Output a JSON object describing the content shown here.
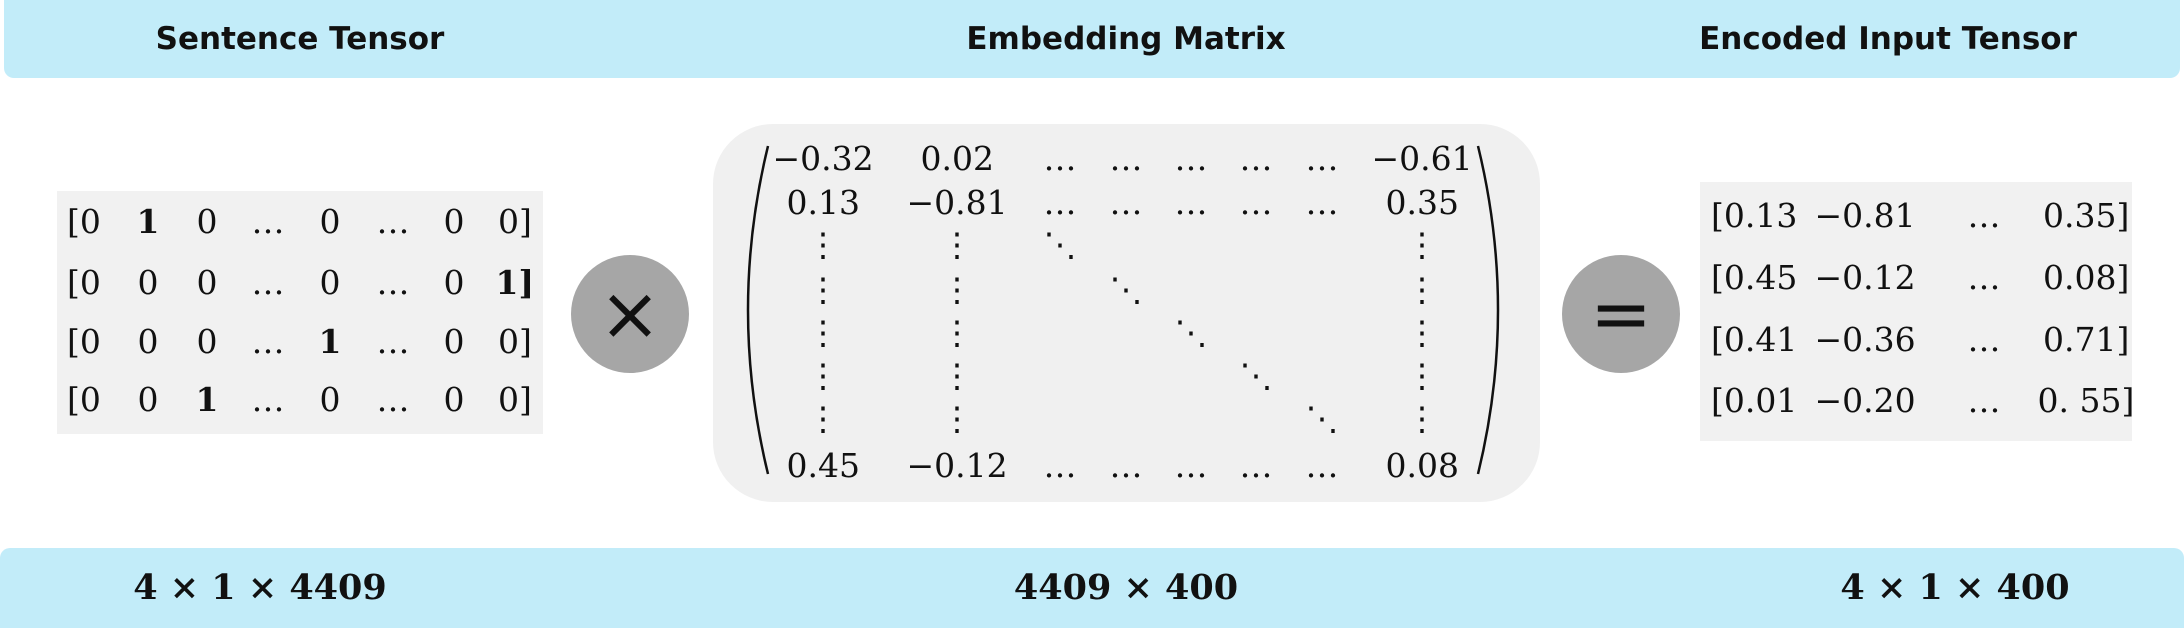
{
  "headers": {
    "left": "Sentence Tensor",
    "middle": "Embedding Matrix",
    "right": "Encoded Input Tensor"
  },
  "dimensions": {
    "left": "4 × 1 × 4409",
    "middle": "4409 × 400",
    "right": "4 × 1 × 400"
  },
  "operators": {
    "multiply": "×",
    "equals": "="
  },
  "sentence_tensor": {
    "rows": [
      [
        "[0",
        "1",
        "0",
        "…",
        "0",
        "…",
        "0",
        "0]"
      ],
      [
        "[0",
        "0",
        "0",
        "…",
        "0",
        "…",
        "0",
        "1]"
      ],
      [
        "[0",
        "0",
        "0",
        "…",
        "1",
        "…",
        "0",
        "0]"
      ],
      [
        "[0",
        "0",
        "1",
        "…",
        "0",
        "…",
        "0",
        "0]"
      ]
    ],
    "hot_cells": [
      [
        0,
        1
      ],
      [
        1,
        7
      ],
      [
        2,
        4
      ],
      [
        3,
        2
      ]
    ]
  },
  "embedding_matrix": {
    "first_row": [
      "−0.32",
      "0.02",
      "…",
      "…",
      "…",
      "…",
      "…",
      "−0.61"
    ],
    "second_row": [
      "0.13",
      "−0.81",
      "…",
      "…",
      "…",
      "…",
      "…",
      "0.35"
    ],
    "last_row": [
      "0.45",
      "−0.12",
      "…",
      "…",
      "…",
      "…",
      "…",
      "0.08"
    ],
    "vdots": "⋮",
    "ddots": "⋱"
  },
  "encoded_tensor": {
    "rows": [
      [
        "[0.13",
        "−0.81",
        "…",
        "0.35]"
      ],
      [
        "[0.45",
        "−0.12",
        "…",
        "0.08]"
      ],
      [
        "[0.41",
        "−0.36",
        "…",
        "0.71]"
      ],
      [
        "[0.01",
        "−0.20",
        "…",
        "0. 55]"
      ]
    ]
  }
}
